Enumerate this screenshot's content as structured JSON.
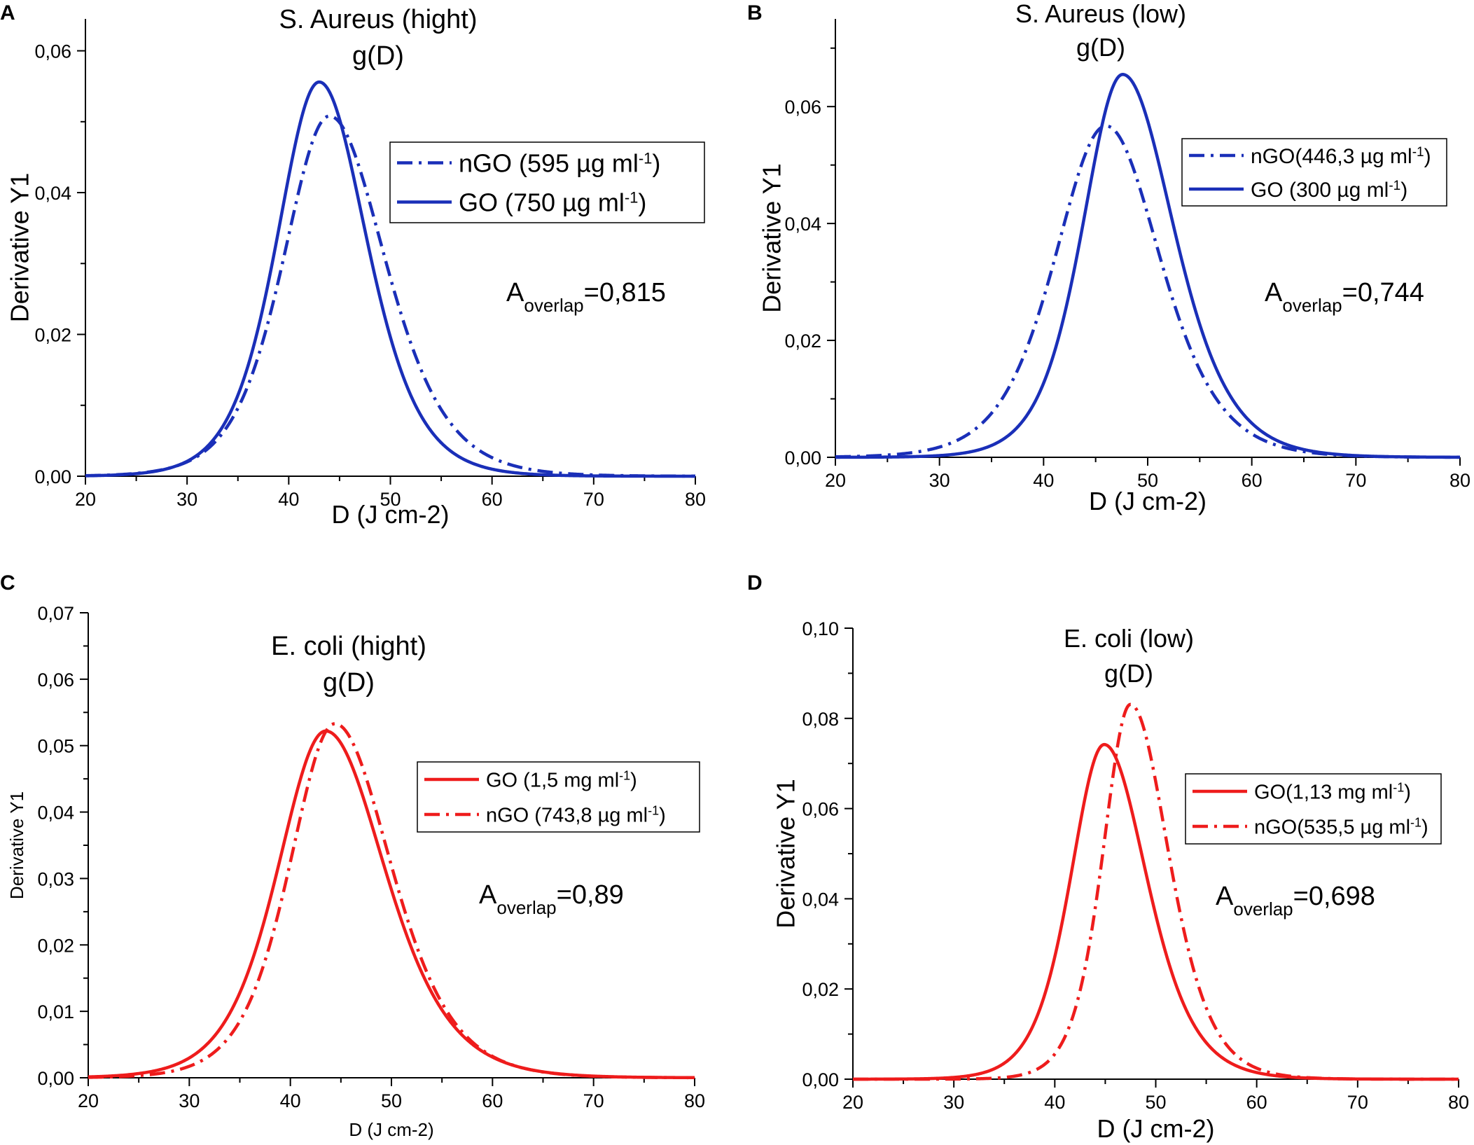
{
  "figure": {
    "background": "#ffffff"
  },
  "chart_data": [
    {
      "panel_label": "A",
      "type": "line",
      "title_lines": [
        "S. Aureus (hight)",
        "g(D)"
      ],
      "xlabel": "D (J cm-2)",
      "ylabel": "Derivative Y1",
      "xlim": [
        20,
        80
      ],
      "ylim": [
        0,
        0.0645
      ],
      "x_ticks": [
        20,
        30,
        40,
        50,
        60,
        70,
        80
      ],
      "x_tick_labels": [
        "20",
        "30",
        "40",
        "50",
        "60",
        "70",
        "80"
      ],
      "y_ticks": [
        0,
        0.02,
        0.04,
        0.06
      ],
      "y_tick_labels": [
        "0,00",
        "0,02",
        "0,04",
        "0,06"
      ],
      "legend": {
        "position": "right",
        "entries": [
          {
            "series": 0,
            "text": "nGO (595 µg ml",
            "sup": "-1",
            "tail": ")"
          },
          {
            "series": 1,
            "text": "GO (750 µg ml",
            "sup": "-1",
            "tail": ")"
          }
        ]
      },
      "annotation": {
        "main": "A",
        "sub": "overlap",
        "value": "=0,815"
      },
      "series": [
        {
          "name": "nGO",
          "color": "#1a2fb8",
          "dash": "dashdot",
          "peak": 0.0508,
          "mu": 44.0,
          "sl": 6.1,
          "sr": 7.4
        },
        {
          "name": "GO",
          "color": "#1a2fb8",
          "dash": "solid",
          "peak": 0.0556,
          "mu": 43.0,
          "sl": 5.6,
          "sr": 6.3
        }
      ]
    },
    {
      "panel_label": "B",
      "type": "line",
      "title_lines": [
        "S. Aureus (low)",
        "g(D)"
      ],
      "xlabel": "D (J cm-2)",
      "ylabel": "Derivative Y1",
      "xlim": [
        20,
        80
      ],
      "ylim": [
        0,
        0.075
      ],
      "x_ticks": [
        20,
        30,
        40,
        50,
        60,
        70,
        80
      ],
      "x_tick_labels": [
        "20",
        "30",
        "40",
        "50",
        "60",
        "70",
        "80"
      ],
      "y_ticks": [
        0,
        0.02,
        0.04,
        0.06
      ],
      "y_tick_labels": [
        "0,00",
        "0,02",
        "0,04",
        "0,06"
      ],
      "legend": {
        "position": "upper-right",
        "entries": [
          {
            "series": 0,
            "text": "nGO(446,3 µg ml",
            "sup": "-1",
            "tail": ")"
          },
          {
            "series": 1,
            "text": "GO (300 µg ml",
            "sup": "-1",
            "tail": ")"
          }
        ]
      },
      "annotation": {
        "main": "A",
        "sub": "overlap",
        "value": "=0,744"
      },
      "series": [
        {
          "name": "nGO",
          "color": "#1a2fb8",
          "dash": "dashdot",
          "peak": 0.0567,
          "mu": 46.0,
          "sl": 6.6,
          "sr": 7.0
        },
        {
          "name": "GO",
          "color": "#1a2fb8",
          "dash": "solid",
          "peak": 0.0655,
          "mu": 47.6,
          "sl": 5.2,
          "sr": 6.6
        }
      ]
    },
    {
      "panel_label": "C",
      "type": "line",
      "title_lines": [
        "E. coli (hight)",
        "g(D)"
      ],
      "xlabel": "D (J cm-2)",
      "ylabel": "Derivative Y1",
      "xlim": [
        20,
        80
      ],
      "ylim": [
        0,
        0.07
      ],
      "x_ticks": [
        20,
        30,
        40,
        50,
        60,
        70,
        80
      ],
      "x_tick_labels": [
        "20",
        "30",
        "40",
        "50",
        "60",
        "70",
        "80"
      ],
      "y_ticks": [
        0,
        0.01,
        0.02,
        0.03,
        0.04,
        0.05,
        0.06,
        0.07
      ],
      "y_tick_labels": [
        "0,00",
        "0,01",
        "0,02",
        "0,03",
        "0,04",
        "0,05",
        "0,06",
        "0,07"
      ],
      "legend": {
        "position": "right",
        "entries": [
          {
            "series": 0,
            "text": "GO (1,5 mg ml",
            "sup": "-1",
            "tail": ")"
          },
          {
            "series": 1,
            "text": "nGO (743,8 µg ml",
            "sup": "-1",
            "tail": ")"
          }
        ]
      },
      "annotation": {
        "main": "A",
        "sub": "overlap",
        "value": "=0,89"
      },
      "series": [
        {
          "name": "GO",
          "color": "#ee1c1c",
          "dash": "solid",
          "peak": 0.0522,
          "mu": 43.5,
          "sl": 6.4,
          "sr": 7.9
        },
        {
          "name": "nGO",
          "color": "#ee1c1c",
          "dash": "dashdot",
          "peak": 0.0533,
          "mu": 44.4,
          "sl": 6.0,
          "sr": 7.5
        }
      ]
    },
    {
      "panel_label": "D",
      "type": "line",
      "title_lines": [
        "E. coli (low)",
        "g(D)"
      ],
      "xlabel": "D (J cm-2)",
      "ylabel": "Derivative Y1",
      "xlim": [
        20,
        80
      ],
      "ylim": [
        0,
        0.1
      ],
      "x_ticks": [
        20,
        30,
        40,
        50,
        60,
        70,
        80
      ],
      "x_tick_labels": [
        "20",
        "30",
        "40",
        "50",
        "60",
        "70",
        "80"
      ],
      "y_ticks": [
        0,
        0.02,
        0.04,
        0.06,
        0.08,
        0.1
      ],
      "y_tick_labels": [
        "0,00",
        "0,02",
        "0,04",
        "0,06",
        "0,08",
        "0,10"
      ],
      "legend": {
        "position": "right",
        "entries": [
          {
            "series": 0,
            "text": "GO(1,13 mg ml",
            "sup": "-1",
            "tail": ")"
          },
          {
            "series": 1,
            "text": "nGO(535,5 µg ml",
            "sup": "-1",
            "tail": ")"
          }
        ]
      },
      "annotation": {
        "main": "A",
        "sub": "overlap",
        "value": "=0,698"
      },
      "series": [
        {
          "name": "GO",
          "color": "#ee1c1c",
          "dash": "solid",
          "peak": 0.0742,
          "mu": 44.9,
          "sl": 4.5,
          "sr": 5.7
        },
        {
          "name": "nGO",
          "color": "#ee1c1c",
          "dash": "dashdot",
          "peak": 0.0831,
          "mu": 47.5,
          "sl": 3.7,
          "sr": 5.1
        }
      ]
    }
  ]
}
